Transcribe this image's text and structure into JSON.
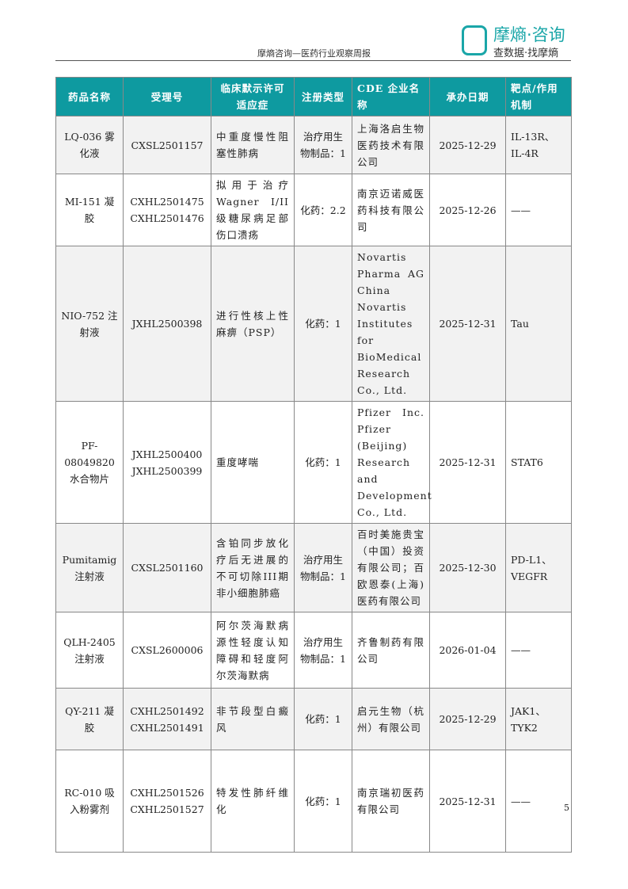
{
  "header": {
    "title": "摩熵咨询—医药行业观察周报",
    "logo_line1": "摩熵·咨询",
    "logo_line2": "查数据·找摩熵"
  },
  "table": {
    "columns": [
      "药品名称",
      "受理号",
      "临床默示许可适应症",
      "注册类型",
      "CDE 企业名称",
      "承办日期",
      "靶点/作用机制"
    ],
    "rows": [
      [
        "LQ-036 雾化液",
        "CXSL2501157",
        "中重度慢性阻塞性肺病",
        "治疗用生物制品：1",
        "上海洛启生物医药技术有限公司",
        "2025-12-29",
        "IL-13R、IL-4R"
      ],
      [
        "MI-151 凝胶",
        "CXHL2501475 CXHL2501476",
        "拟用于治疗 Wagner I/II 级糖尿病足部伤口溃疡",
        "化药：2.2",
        "南京迈诺威医药科技有限公司",
        "2025-12-26",
        "——"
      ],
      [
        "NIO-752 注射液",
        "JXHL2500398",
        "进行性核上性麻痹（PSP）",
        "化药：1",
        "Novartis Pharma AG China Novartis Institutes for BioMedical Research Co., Ltd.",
        "2025-12-31",
        "Tau"
      ],
      [
        "PF-08049820 水合物片",
        "JXHL2500400 JXHL2500399",
        "重度哮喘",
        "化药：1",
        "Pfizer Inc. Pfizer (Beijing) Research and Development Co., Ltd.",
        "2025-12-31",
        "STAT6"
      ],
      [
        "Pumitamig 注射液",
        "CXSL2501160",
        "含铂同步放化疗后无进展的不可切除III期非小细胞肺癌",
        "治疗用生物制品：1",
        "百时美施贵宝（中国）投资有限公司；百欧恩泰(上海)医药有限公司",
        "2025-12-30",
        "PD-L1、VEGFR"
      ],
      [
        "QLH-2405 注射液",
        "CXSL2600006",
        "阿尔茨海默病源性轻度认知障碍和轻度阿尔茨海默病",
        "治疗用生物制品：1",
        "齐鲁制药有限公司",
        "2026-01-04",
        "——"
      ],
      [
        "QY-211 凝胶",
        "CXHL2501492 CXHL2501491",
        "非节段型白癜风",
        "化药：1",
        "启元生物（杭州）有限公司",
        "2025-12-29",
        "JAK1、TYK2"
      ],
      [
        "RC-010 吸入粉雾剂",
        "CXHL2501526 CXHL2501527",
        "特发性肺纤维化",
        "化药：1",
        "南京瑞初医药有限公司",
        "2025-12-31",
        "——"
      ]
    ]
  },
  "page_number": "5"
}
